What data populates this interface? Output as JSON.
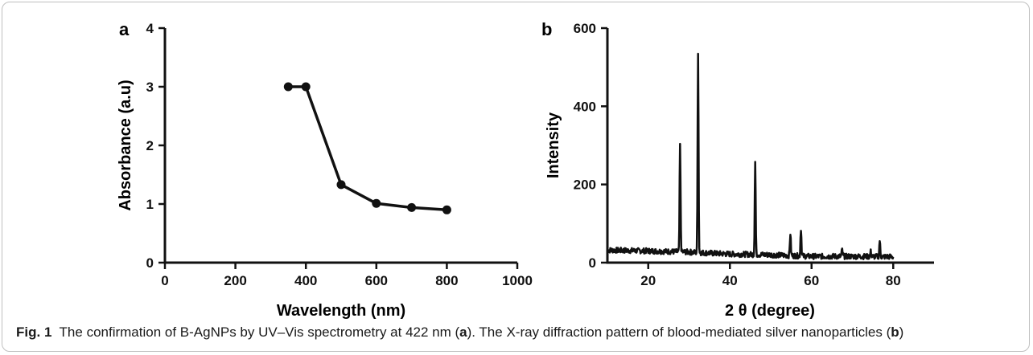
{
  "caption": {
    "label": "Fig. 1",
    "text_1": "The confirmation of B-AgNPs by UV–Vis spectrometry at 422 nm (",
    "ref_a": "a",
    "text_2": "). The X-ray diffraction pattern of blood-mediated silver nanoparticles (",
    "ref_b": "b",
    "text_3": ")"
  },
  "chart_data": [
    {
      "panel": "a",
      "type": "line",
      "xlabel": "Wavelength (nm)",
      "ylabel": "Absorbance (a.u)",
      "xlim": [
        0,
        1000
      ],
      "ylim": [
        0,
        4
      ],
      "xticks": [
        0,
        200,
        400,
        600,
        800,
        1000
      ],
      "yticks": [
        0,
        1,
        2,
        3,
        4
      ],
      "grid": false,
      "markers": true,
      "color": "#111111",
      "series": [
        {
          "x": [
            350,
            400,
            500,
            600,
            700,
            800
          ],
          "y": [
            3.0,
            3.0,
            1.33,
            1.01,
            0.94,
            0.9
          ]
        }
      ]
    },
    {
      "panel": "b",
      "type": "line",
      "xlabel": "2 θ (degree)",
      "ylabel": "Intensity",
      "xlim": [
        10,
        90
      ],
      "ylim": [
        0,
        600
      ],
      "xticks": [
        20,
        40,
        60,
        80
      ],
      "yticks": [
        0,
        200,
        400,
        600
      ],
      "grid": false,
      "markers": false,
      "color": "#111111",
      "baseline": [
        [
          10,
          32
        ],
        [
          20,
          30
        ],
        [
          30,
          27
        ],
        [
          40,
          22
        ],
        [
          50,
          20
        ],
        [
          60,
          16
        ],
        [
          70,
          16
        ],
        [
          80,
          15
        ]
      ],
      "peaks": [
        {
          "x": 27.8,
          "y": 302
        },
        {
          "x": 32.2,
          "y": 540
        },
        {
          "x": 46.2,
          "y": 258
        },
        {
          "x": 54.8,
          "y": 75
        },
        {
          "x": 57.4,
          "y": 87
        },
        {
          "x": 67.5,
          "y": 33
        },
        {
          "x": 74.5,
          "y": 28
        },
        {
          "x": 76.7,
          "y": 57
        }
      ]
    }
  ]
}
